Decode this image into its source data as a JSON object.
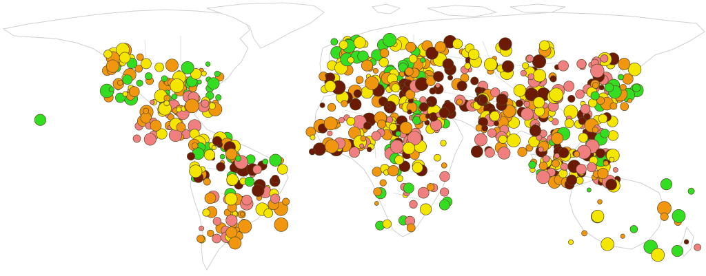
{
  "map": {
    "basemap": "world-country-outlines",
    "background_color": "#ffffff",
    "outline_color": "#cfcfcf",
    "has_legend": false,
    "has_title": false
  },
  "marker_palette": {
    "green": "#33dd22",
    "yellow": "#f5e600",
    "orange": "#f0960f",
    "pink": "#f08080",
    "brown": "#6b1a06"
  },
  "marker_clusters": [
    {
      "region": "western-north-america",
      "colors": [
        "yellow",
        "orange",
        "green"
      ],
      "count": 40
    },
    {
      "region": "eastern-north-america",
      "colors": [
        "green",
        "yellow",
        "orange"
      ],
      "count": 55
    },
    {
      "region": "mexico-central-america",
      "colors": [
        "orange",
        "pink",
        "yellow"
      ],
      "count": 45
    },
    {
      "region": "caribbean",
      "colors": [
        "green",
        "yellow"
      ],
      "count": 14
    },
    {
      "region": "northern-south-america",
      "colors": [
        "yellow",
        "orange",
        "green",
        "brown"
      ],
      "count": 30
    },
    {
      "region": "brazil",
      "colors": [
        "yellow",
        "orange",
        "brown",
        "pink",
        "green"
      ],
      "count": 45
    },
    {
      "region": "southern-south-america",
      "colors": [
        "pink",
        "orange",
        "yellow"
      ],
      "count": 30
    },
    {
      "region": "hawaii",
      "colors": [
        "green"
      ],
      "count": 1
    },
    {
      "region": "europe",
      "colors": [
        "green",
        "yellow",
        "orange"
      ],
      "count": 80
    },
    {
      "region": "mediterranean",
      "colors": [
        "orange",
        "yellow",
        "brown"
      ],
      "count": 45
    },
    {
      "region": "sahel-west-africa",
      "colors": [
        "brown",
        "pink",
        "orange",
        "yellow"
      ],
      "count": 70
    },
    {
      "region": "east-africa",
      "colors": [
        "brown",
        "orange",
        "pink",
        "yellow",
        "green"
      ],
      "count": 40
    },
    {
      "region": "southern-africa",
      "colors": [
        "orange",
        "yellow",
        "green",
        "pink"
      ],
      "count": 30
    },
    {
      "region": "middle-east",
      "colors": [
        "brown",
        "pink",
        "orange"
      ],
      "count": 45
    },
    {
      "region": "central-asia",
      "colors": [
        "yellow",
        "orange",
        "brown"
      ],
      "count": 40
    },
    {
      "region": "south-asia",
      "colors": [
        "pink",
        "orange",
        "yellow",
        "brown"
      ],
      "count": 70
    },
    {
      "region": "china",
      "colors": [
        "brown",
        "pink",
        "yellow"
      ],
      "count": 80
    },
    {
      "region": "japan-korea",
      "colors": [
        "yellow",
        "orange",
        "green"
      ],
      "count": 25
    },
    {
      "region": "southeast-asia",
      "colors": [
        "brown",
        "pink",
        "yellow",
        "orange",
        "green"
      ],
      "count": 55
    },
    {
      "region": "indonesia",
      "colors": [
        "brown",
        "pink",
        "orange",
        "yellow"
      ],
      "count": 45
    },
    {
      "region": "australia",
      "colors": [
        "green",
        "yellow",
        "orange"
      ],
      "count": 10
    },
    {
      "region": "new-zealand-pacific",
      "colors": [
        "green",
        "yellow",
        "orange",
        "brown",
        "pink"
      ],
      "count": 10
    }
  ]
}
